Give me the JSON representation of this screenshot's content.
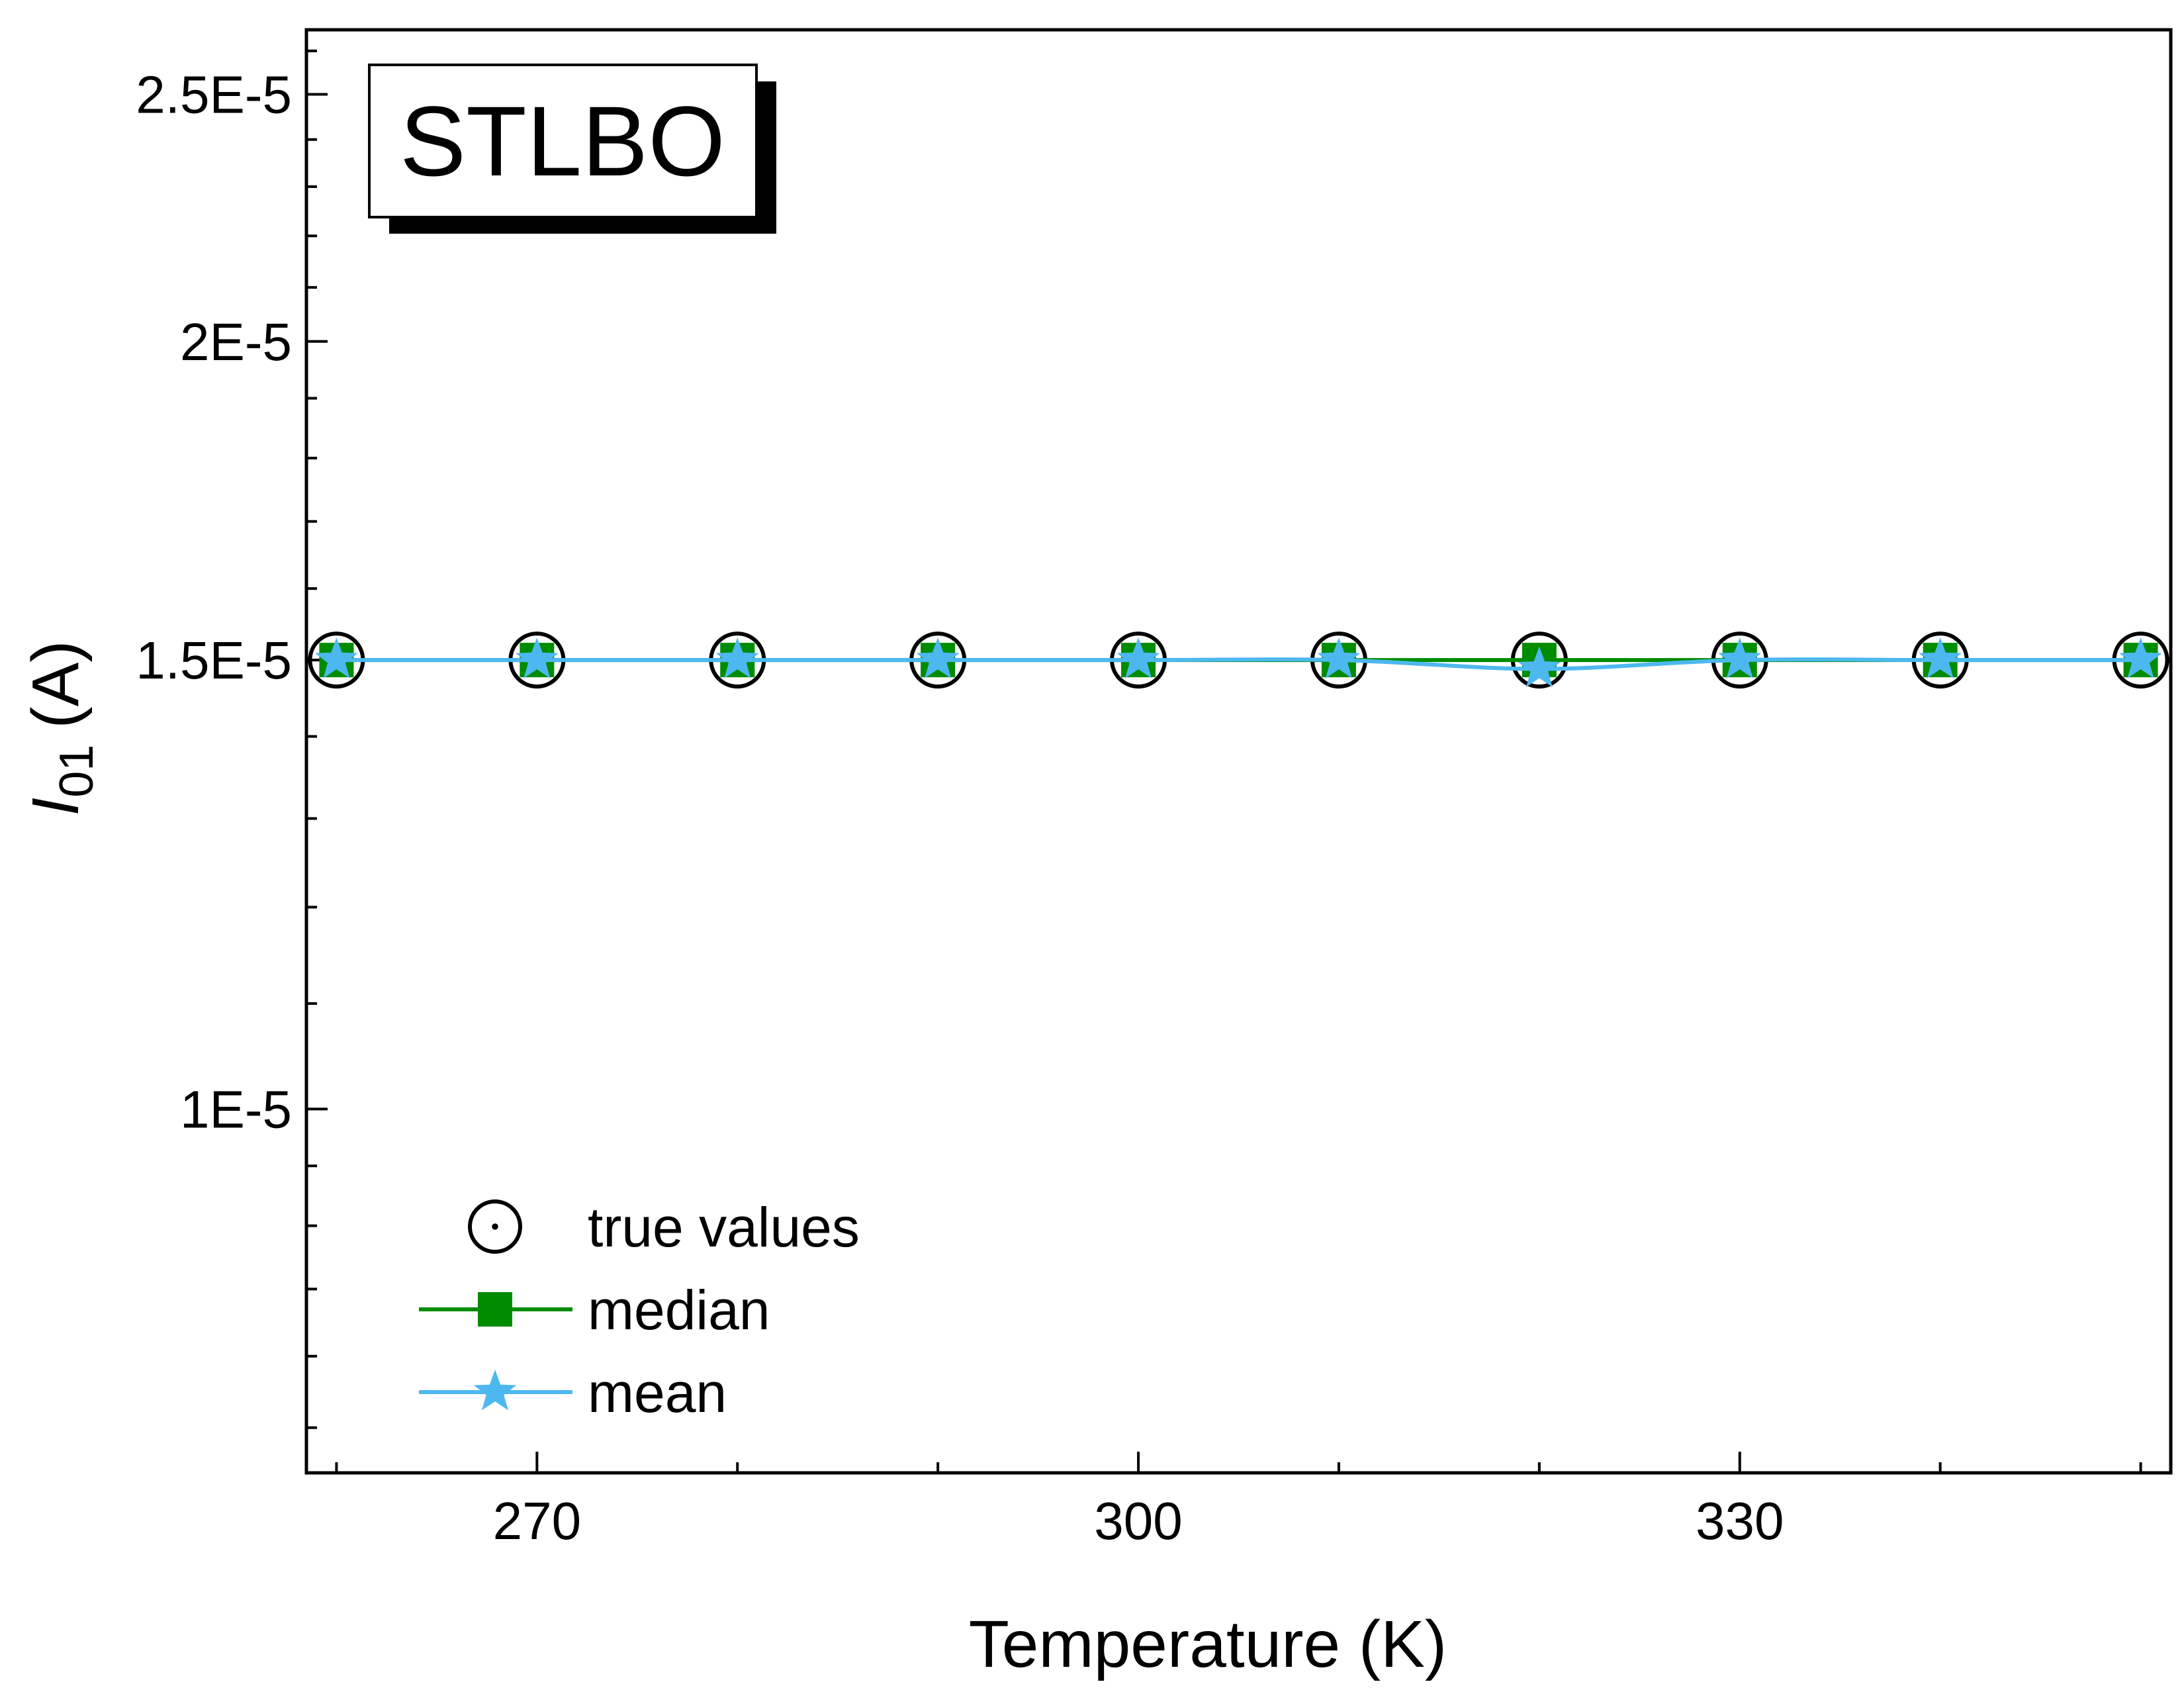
{
  "chart_data": {
    "type": "line",
    "title": "STLBO",
    "xlabel": "Temperature (K)",
    "ylabel_main": "I",
    "ylabel_sub": "01",
    "ylabel_unit": "(A)",
    "y_scale": "log",
    "xlim": [
      258.5,
      351.5
    ],
    "ylim": [
      7.2e-06,
      2.65e-05
    ],
    "x_ticks": [
      {
        "value": 270,
        "label": "270"
      },
      {
        "value": 300,
        "label": "300"
      },
      {
        "value": 330,
        "label": "330"
      }
    ],
    "y_ticks": [
      {
        "value": 1e-05,
        "label": "1E-5"
      },
      {
        "value": 1.5e-05,
        "label": "1.5E-5"
      },
      {
        "value": 2e-05,
        "label": "2E-5"
      },
      {
        "value": 2.5e-05,
        "label": "2.5E-5"
      }
    ],
    "x_minor_ticks": [
      260,
      280,
      290,
      310,
      320,
      340,
      350
    ],
    "y_minor_ticks": [
      7.5e-06,
      8e-06,
      8.5e-06,
      9e-06,
      9.5e-06,
      1.1e-05,
      1.2e-05,
      1.3e-05,
      1.4e-05,
      1.6e-05,
      1.7e-05,
      1.8e-05,
      1.9e-05,
      2.1e-05,
      2.2e-05,
      2.3e-05,
      2.4e-05,
      2.6e-05
    ],
    "legend_position": "bottom-left",
    "series": [
      {
        "name": "true values",
        "marker": "circle-dot",
        "line": false,
        "color": "#000000",
        "x": [
          260,
          270,
          280,
          290,
          300,
          310,
          320,
          330,
          340,
          350
        ],
        "y": [
          1.5e-05,
          1.5e-05,
          1.5e-05,
          1.5e-05,
          1.5e-05,
          1.5e-05,
          1.5e-05,
          1.5e-05,
          1.5e-05,
          1.5e-05
        ]
      },
      {
        "name": "median",
        "marker": "square",
        "line": true,
        "color": "#008c00",
        "x": [
          260,
          270,
          280,
          290,
          300,
          310,
          320,
          330,
          340,
          350
        ],
        "y": [
          1.5e-05,
          1.5e-05,
          1.5e-05,
          1.5e-05,
          1.5e-05,
          1.5e-05,
          1.5e-05,
          1.5e-05,
          1.5e-05,
          1.5e-05
        ]
      },
      {
        "name": "mean",
        "marker": "star",
        "line": true,
        "color": "#4db8f0",
        "x": [
          260,
          270,
          280,
          290,
          300,
          310,
          320,
          330,
          340,
          350
        ],
        "y": [
          1.5e-05,
          1.5e-05,
          1.5e-05,
          1.5e-05,
          1.5e-05,
          1.5e-05,
          1.488e-05,
          1.5e-05,
          1.5e-05,
          1.5e-05
        ]
      }
    ]
  }
}
